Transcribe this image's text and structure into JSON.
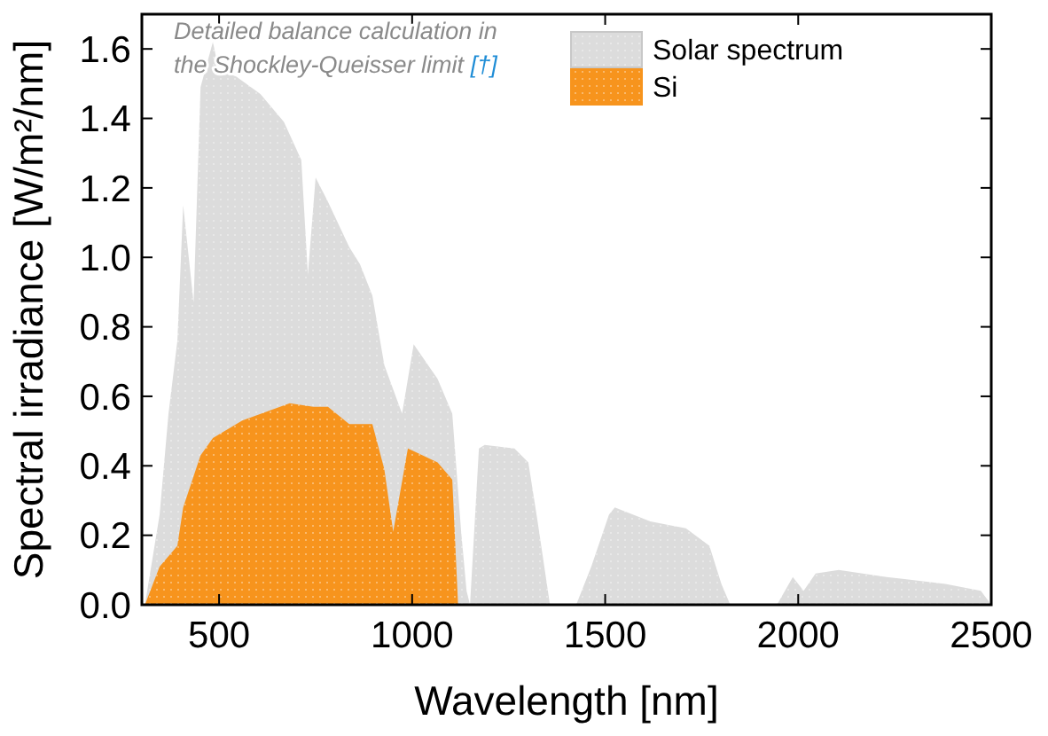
{
  "chart_data": {
    "type": "area",
    "xlabel": "Wavelength [nm]",
    "ylabel": "Spectral irradiance [W/m²/nm]",
    "xlim": [
      300,
      2500
    ],
    "ylim": [
      0,
      1.7
    ],
    "xticks": [
      500,
      1000,
      1500,
      2000,
      2500
    ],
    "yticks": [
      {
        "value": 0,
        "label": "0.0"
      },
      {
        "value": 0.2,
        "label": "0.2"
      },
      {
        "value": 0.4,
        "label": "0.4"
      },
      {
        "value": 0.6,
        "label": "0.6"
      },
      {
        "value": 0.8,
        "label": "0.8"
      },
      {
        "value": 1,
        "label": "1.0"
      },
      {
        "value": 1.2,
        "label": "1.2"
      },
      {
        "value": 1.4,
        "label": "1.4"
      },
      {
        "value": 1.6,
        "label": "1.6"
      }
    ],
    "legend": "top",
    "grid": false,
    "annotations": [
      "Detailed balance calculation in the Shockley-Queisser limit [†]"
    ],
    "series": [
      {
        "name": "Solar spectrum",
        "color": "#dcdcdc",
        "x": [
          308,
          346,
          369,
          392,
          407,
          434,
          452,
          484,
          499,
          545,
          607,
          668,
          713,
          730,
          750,
          767,
          782,
          837,
          865,
          897,
          928,
          951,
          974,
          1004,
          1066,
          1104,
          1127,
          1141,
          1150,
          1173,
          1188,
          1265,
          1301,
          1325,
          1357,
          1364,
          1425,
          1464,
          1510,
          1525,
          1617,
          1709,
          1770,
          1801,
          1824,
          1945,
          1986,
          2014,
          2045,
          2105,
          2229,
          2381,
          2473,
          2500
        ],
        "values": [
          0,
          0.26,
          0.55,
          0.76,
          1.15,
          0.87,
          1.49,
          1.62,
          1.54,
          1.52,
          1.47,
          1.39,
          1.28,
          0.95,
          1.23,
          null,
          1.16,
          1.03,
          0.98,
          0.89,
          0.69,
          null,
          0.55,
          0.75,
          0.65,
          0.55,
          0.21,
          0.04,
          0,
          0.45,
          0.46,
          0.45,
          0.41,
          0.24,
          0,
          0,
          0,
          0.11,
          0.26,
          0.28,
          0.24,
          0.22,
          0.17,
          0.06,
          0,
          0,
          0.08,
          0.04,
          0.09,
          0.1,
          0.08,
          0.06,
          0.04,
          0
        ]
      },
      {
        "name": "Si",
        "color": "#f7941d",
        "x": [
          308,
          346,
          392,
          407,
          452,
          484,
          560,
          683,
          744,
          782,
          837,
          897,
          928,
          951,
          989,
          1066,
          1104,
          1119
        ],
        "values": [
          0,
          0.11,
          0.17,
          0.28,
          0.43,
          0.48,
          0.53,
          0.58,
          0.57,
          0.57,
          0.52,
          0.52,
          0.39,
          0.21,
          0.45,
          0.41,
          0.36,
          0
        ]
      }
    ]
  }
}
